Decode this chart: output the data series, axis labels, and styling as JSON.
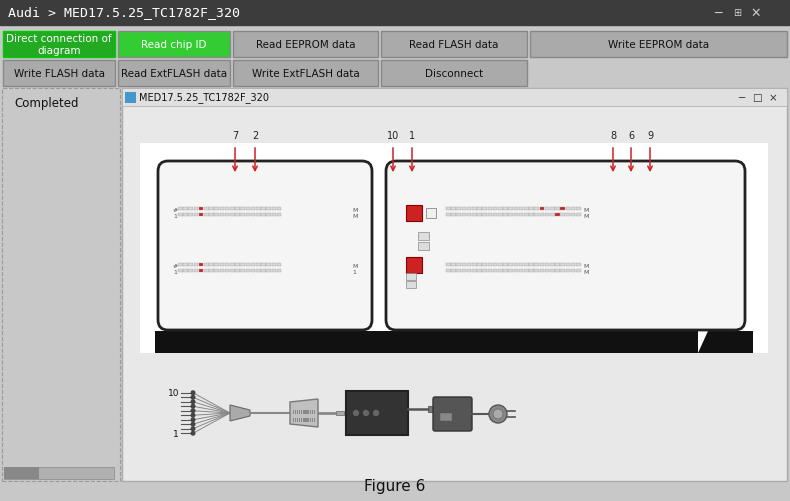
{
  "title_bar_text": "Audi > MED17.5.25_TC1782F_320",
  "title_bar_bg": "#3c3c3c",
  "title_bar_fg": "#ffffff",
  "bg_color": "#c8c8c8",
  "button_row1": [
    {
      "label": "Direct connection of\ndiagram",
      "bg": "#22aa22",
      "fg": "#ffffff",
      "border": "#00cc00"
    },
    {
      "label": "Read chip ID",
      "bg": "#33cc33",
      "fg": "#ffffff",
      "border": "#888888"
    },
    {
      "label": "Read EEPROM data",
      "bg": "#aaaaaa",
      "fg": "#111111",
      "border": "#888888"
    },
    {
      "label": "Read FLASH data",
      "bg": "#aaaaaa",
      "fg": "#111111",
      "border": "#888888"
    },
    {
      "label": "Write EEPROM data",
      "bg": "#aaaaaa",
      "fg": "#111111",
      "border": "#888888"
    }
  ],
  "button_row2": [
    {
      "label": "Write FLASH data",
      "bg": "#aaaaaa",
      "fg": "#111111",
      "border": "#888888"
    },
    {
      "label": "Read ExtFLASH data",
      "bg": "#aaaaaa",
      "fg": "#111111",
      "border": "#888888"
    },
    {
      "label": "Write ExtFLASH data",
      "bg": "#aaaaaa",
      "fg": "#111111",
      "border": "#888888"
    },
    {
      "label": "Disconnect",
      "bg": "#aaaaaa",
      "fg": "#111111",
      "border": "#888888"
    }
  ],
  "inner_window_title": "MED17.5.25_TC1782F_320",
  "left_panel_text": "Completed",
  "figure_caption": "Figure 6"
}
